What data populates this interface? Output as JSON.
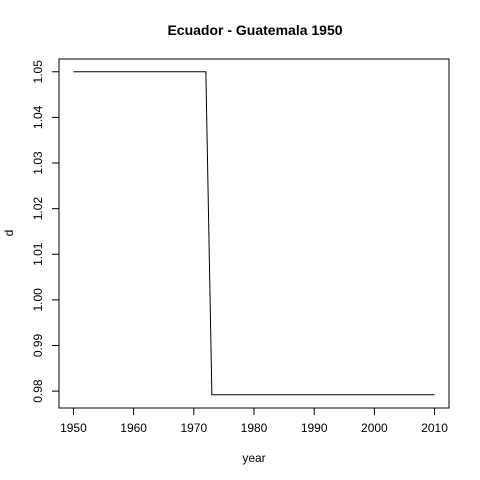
{
  "chart_data": {
    "type": "line",
    "title": "Ecuador - Guatemala 1950",
    "xlabel": "year",
    "ylabel": "d",
    "xlim": [
      1947.6,
      2012.4
    ],
    "ylim": [
      0.9763,
      1.0528
    ],
    "x_ticks": [
      1950,
      1960,
      1970,
      1980,
      1990,
      2000,
      2010
    ],
    "y_ticks": [
      0.98,
      0.99,
      1.0,
      1.01,
      1.02,
      1.03,
      1.04,
      1.05
    ],
    "x_tick_labels": [
      "1950",
      "1960",
      "1970",
      "1980",
      "1990",
      "2000",
      "2010"
    ],
    "y_tick_labels": [
      "0.98",
      "0.99",
      "1.00",
      "1.01",
      "1.02",
      "1.03",
      "1.04",
      "1.05"
    ],
    "grid": false,
    "series": [
      {
        "x": [
          1950,
          1972,
          1973,
          2010
        ],
        "y": [
          1.05,
          1.05,
          0.9792,
          0.9792
        ]
      }
    ]
  }
}
